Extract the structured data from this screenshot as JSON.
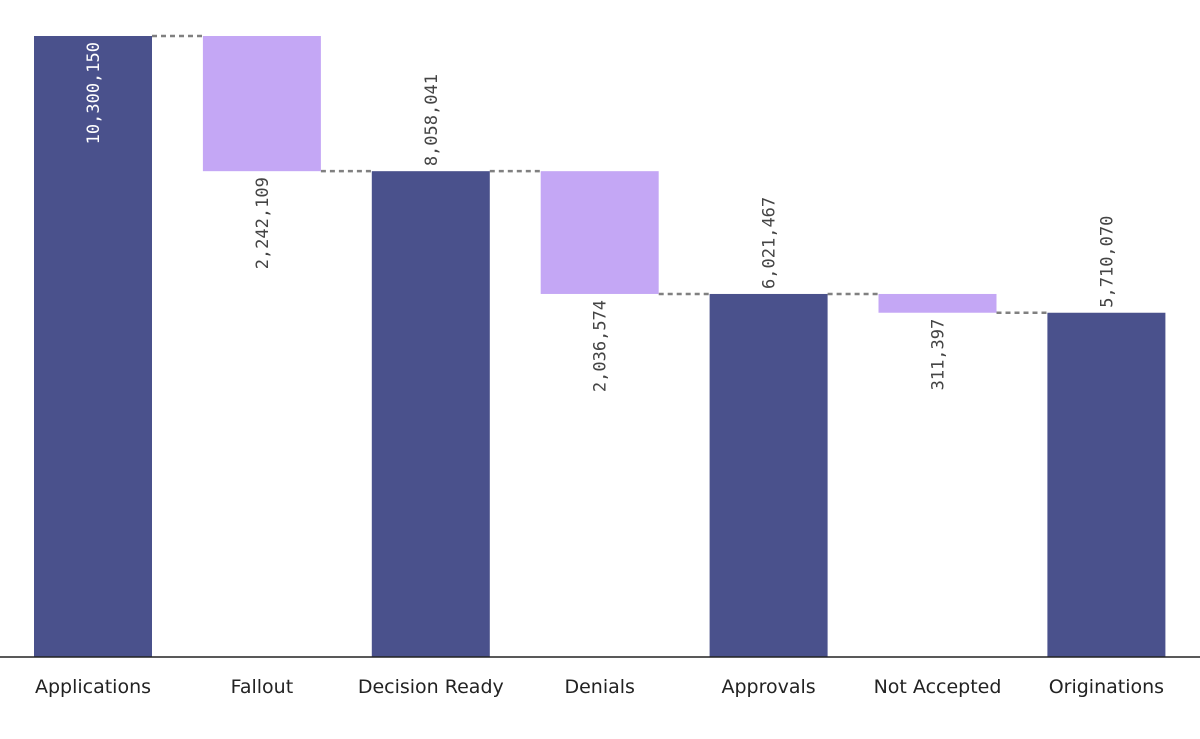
{
  "chart_data": {
    "type": "bar",
    "subtype": "waterfall",
    "title": "",
    "xlabel": "",
    "ylabel": "",
    "ylim": [
      0,
      10300150
    ],
    "grid": false,
    "legend": "none",
    "categories": [
      "Applications",
      "Fallout",
      "Decision Ready",
      "Denials",
      "Approvals",
      "Not Accepted",
      "Originations"
    ],
    "steps": [
      {
        "category": "Applications",
        "kind": "total",
        "value": 10300150,
        "label": "10,300,150"
      },
      {
        "category": "Fallout",
        "kind": "decrease",
        "value": 2242109,
        "label": "2,242,109"
      },
      {
        "category": "Decision Ready",
        "kind": "total",
        "value": 8058041,
        "label": "8,058,041"
      },
      {
        "category": "Denials",
        "kind": "decrease",
        "value": 2036574,
        "label": "2,036,574"
      },
      {
        "category": "Approvals",
        "kind": "total",
        "value": 6021467,
        "label": "6,021,467"
      },
      {
        "category": "Not Accepted",
        "kind": "decrease",
        "value": 311397,
        "label": "311,397"
      },
      {
        "category": "Originations",
        "kind": "total",
        "value": 5710070,
        "label": "5,710,070"
      }
    ],
    "colors": {
      "total": "#4a518c",
      "decrease": "#c4a7f5",
      "connector": "#808080",
      "axis": "#222222"
    }
  }
}
